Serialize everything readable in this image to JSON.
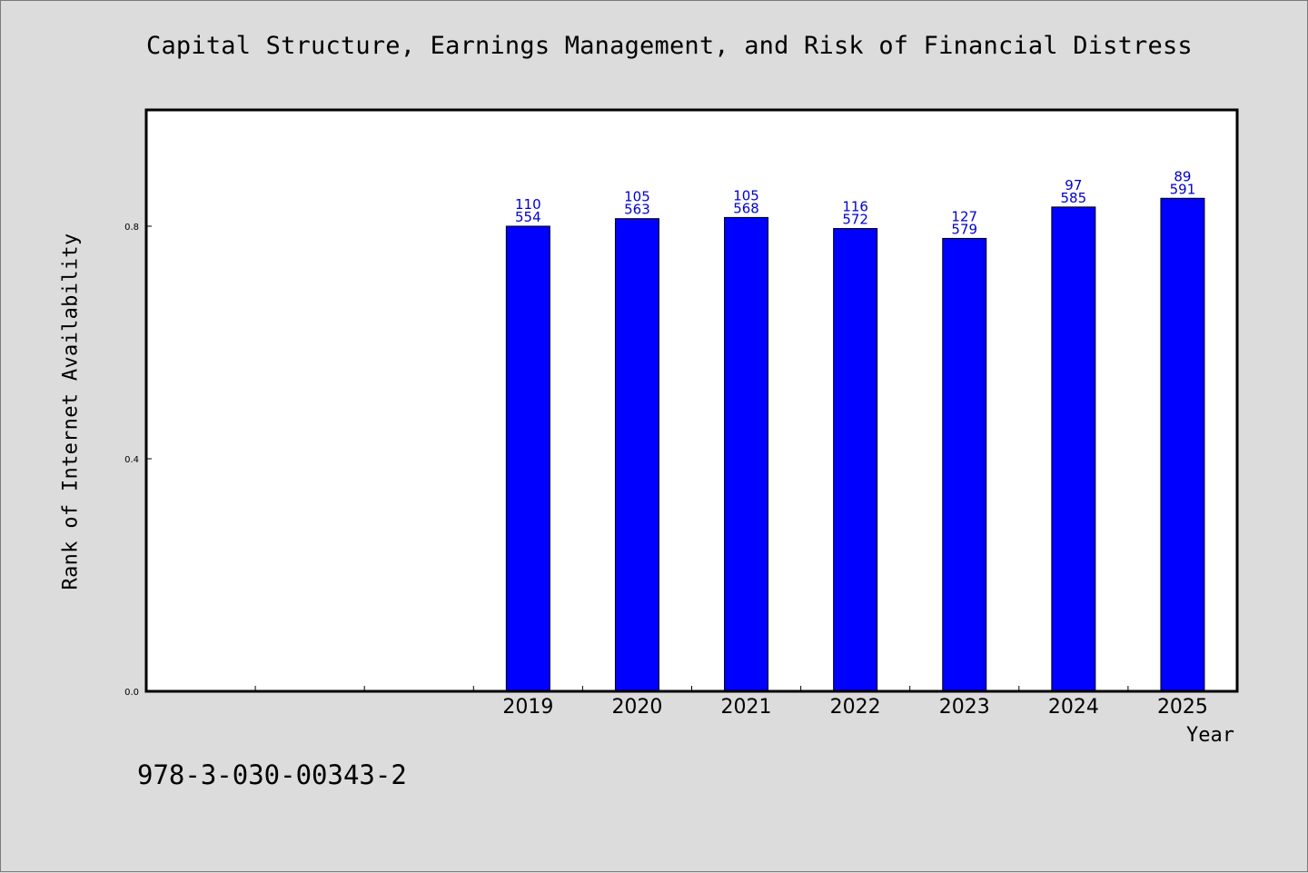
{
  "colors": {
    "background": "#dcdcdc",
    "plot_background": "#ffffff",
    "bar_fill": "#0000ff",
    "label_color": "#0000cc"
  },
  "footer": {
    "code": "978-3-030-00343-2"
  },
  "chart_data": {
    "type": "bar",
    "title": "Capital Structure, Earnings Management, and Risk of Financial Distress",
    "xlabel": "Year",
    "ylabel": "Rank of Internet Availability",
    "ylim": [
      0,
      1.0
    ],
    "yticks": [
      "0.0",
      "0.4",
      "0.8"
    ],
    "grid": false,
    "empty_slots_before": 3,
    "categories": [
      "2019",
      "2020",
      "2021",
      "2022",
      "2023",
      "2024",
      "2025"
    ],
    "values": [
      0.8,
      0.813,
      0.815,
      0.796,
      0.779,
      0.833,
      0.848
    ],
    "labels_top": [
      "110",
      "105",
      "105",
      "116",
      "127",
      "97",
      "89"
    ],
    "labels_bottom": [
      "554",
      "563",
      "568",
      "572",
      "579",
      "585",
      "591"
    ]
  }
}
